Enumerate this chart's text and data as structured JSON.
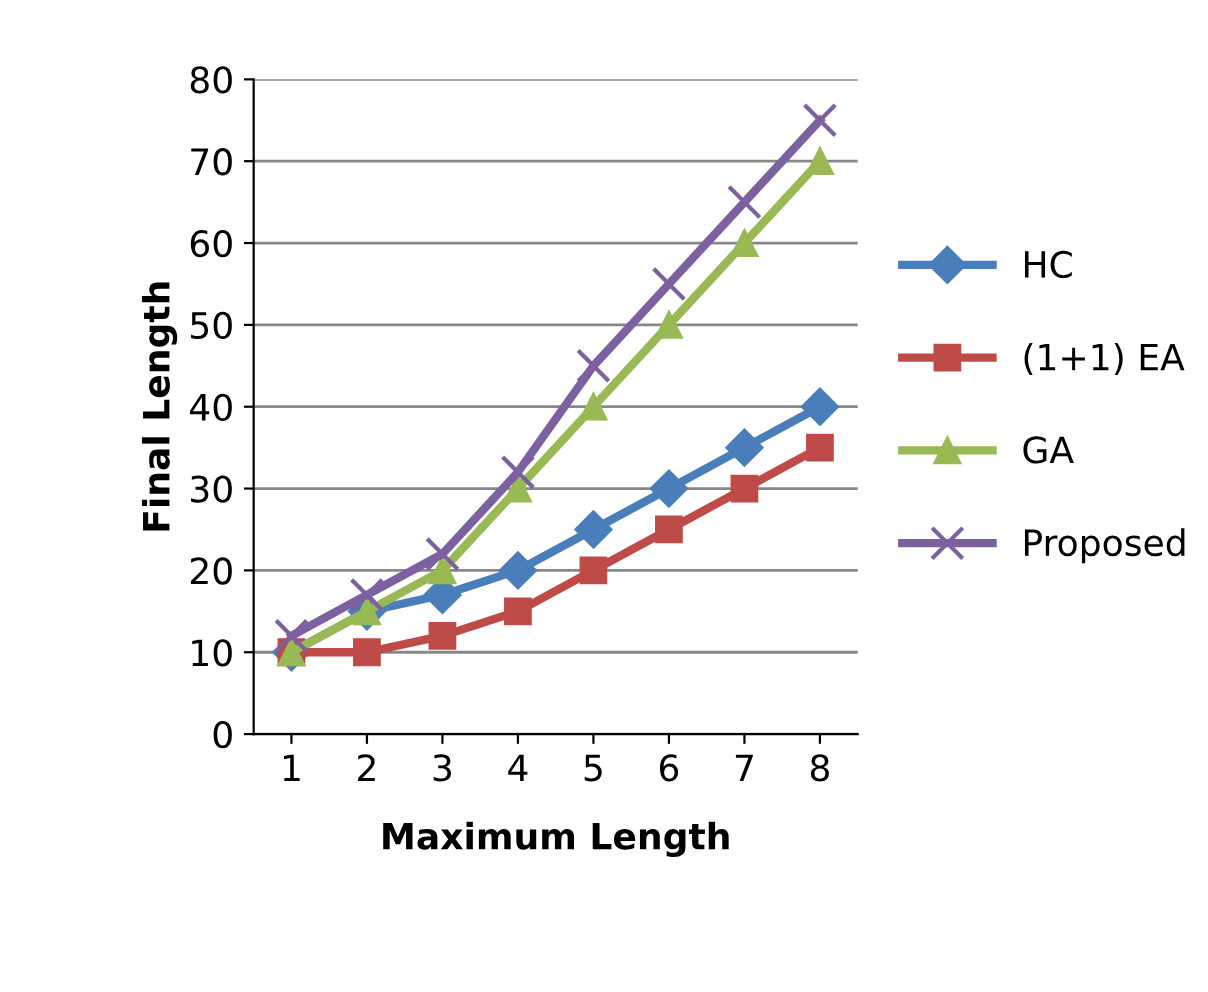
{
  "chart_data": {
    "type": "line",
    "xlabel": "Maximum Length",
    "ylabel": "Final Length",
    "categories": [
      "1",
      "2",
      "3",
      "4",
      "5",
      "6",
      "7",
      "8"
    ],
    "series": [
      {
        "name": "HC",
        "color": "#4a7ebb",
        "marker": "diamond",
        "values": [
          10,
          15,
          17,
          20,
          25,
          30,
          35,
          40
        ]
      },
      {
        "name": "(1+1) EA",
        "color": "#be4b48",
        "marker": "square",
        "values": [
          10,
          10,
          12,
          15,
          20,
          25,
          30,
          35
        ]
      },
      {
        "name": "GA",
        "color": "#98b954",
        "marker": "triangle",
        "values": [
          10,
          15,
          20,
          30,
          40,
          50,
          60,
          70
        ]
      },
      {
        "name": "Proposed",
        "color": "#7d60a0",
        "marker": "cross",
        "values": [
          12,
          17,
          22,
          32,
          45,
          55,
          65,
          75
        ]
      }
    ],
    "ylim": [
      0,
      80
    ],
    "yticks": [
      0,
      10,
      20,
      30,
      40,
      50,
      60,
      70,
      80
    ],
    "grid": "y",
    "legend": "right",
    "line_style": "solid"
  }
}
